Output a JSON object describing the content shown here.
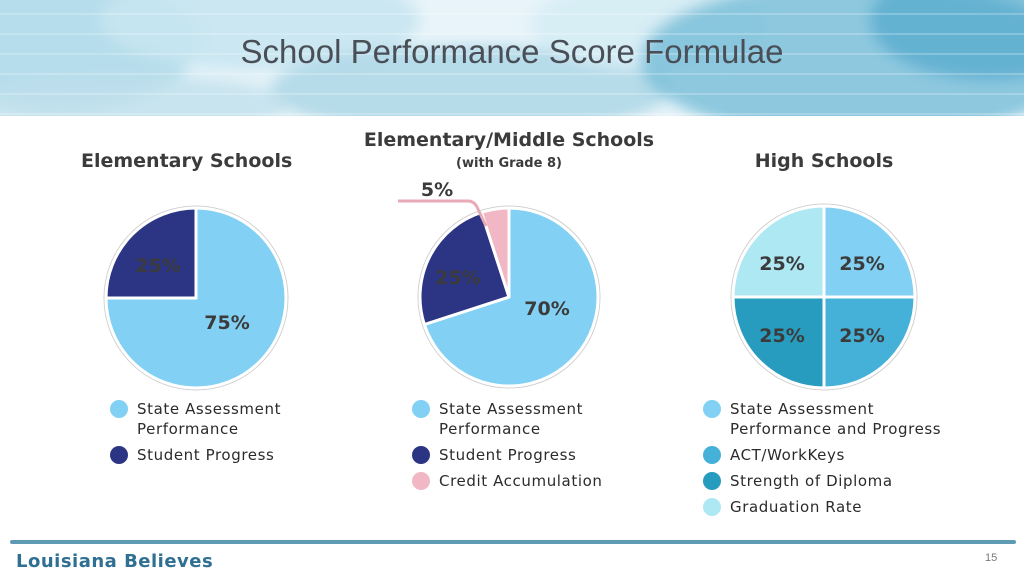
{
  "title": "School Performance Score Formulae",
  "footer": {
    "brand": "Louisiana Believes",
    "page_number": "15"
  },
  "colors": {
    "state_assessment": "#82d1f4",
    "student_progress": "#2c3584",
    "credit_accumulation": "#f2b7c4",
    "act_workkeys": "#46b1d8",
    "strength_of_diploma": "#279cbf",
    "graduation_rate": "#aee8f3"
  },
  "chart_data": [
    {
      "type": "pie",
      "title": "Elementary Schools",
      "subtitle": "",
      "slices": [
        {
          "label": "State Assessment Performance",
          "value": 75,
          "value_label": "75%",
          "color": "#82d1f4"
        },
        {
          "label": "Student Progress",
          "value": 25,
          "value_label": "25%",
          "color": "#2c3584"
        }
      ],
      "legend": [
        "State Assessment Performance",
        "Student Progress"
      ]
    },
    {
      "type": "pie",
      "title": "Elementary/Middle Schools",
      "subtitle": "(with Grade 8)",
      "slices": [
        {
          "label": "State Assessment Performance",
          "value": 70,
          "value_label": "70%",
          "color": "#82d1f4"
        },
        {
          "label": "Student Progress",
          "value": 25,
          "value_label": "25%",
          "color": "#2c3584"
        },
        {
          "label": "Credit Accumulation",
          "value": 5,
          "value_label": "5%",
          "color": "#f2b7c4"
        }
      ],
      "legend": [
        "State Assessment Performance",
        "Student Progress",
        "Credit Accumulation"
      ]
    },
    {
      "type": "pie",
      "title": "High Schools",
      "subtitle": "",
      "slices": [
        {
          "label": "State Assessment Performance and Progress",
          "value": 25,
          "value_label": "25%",
          "color": "#82d1f4"
        },
        {
          "label": "ACT/WorkKeys",
          "value": 25,
          "value_label": "25%",
          "color": "#46b1d8"
        },
        {
          "label": "Strength of Diploma",
          "value": 25,
          "value_label": "25%",
          "color": "#279cbf"
        },
        {
          "label": "Graduation Rate",
          "value": 25,
          "value_label": "25%",
          "color": "#aee8f3"
        }
      ],
      "legend": [
        "State Assessment Performance and Progress",
        "ACT/WorkKeys",
        "Strength of Diploma",
        "Graduation Rate"
      ]
    }
  ]
}
